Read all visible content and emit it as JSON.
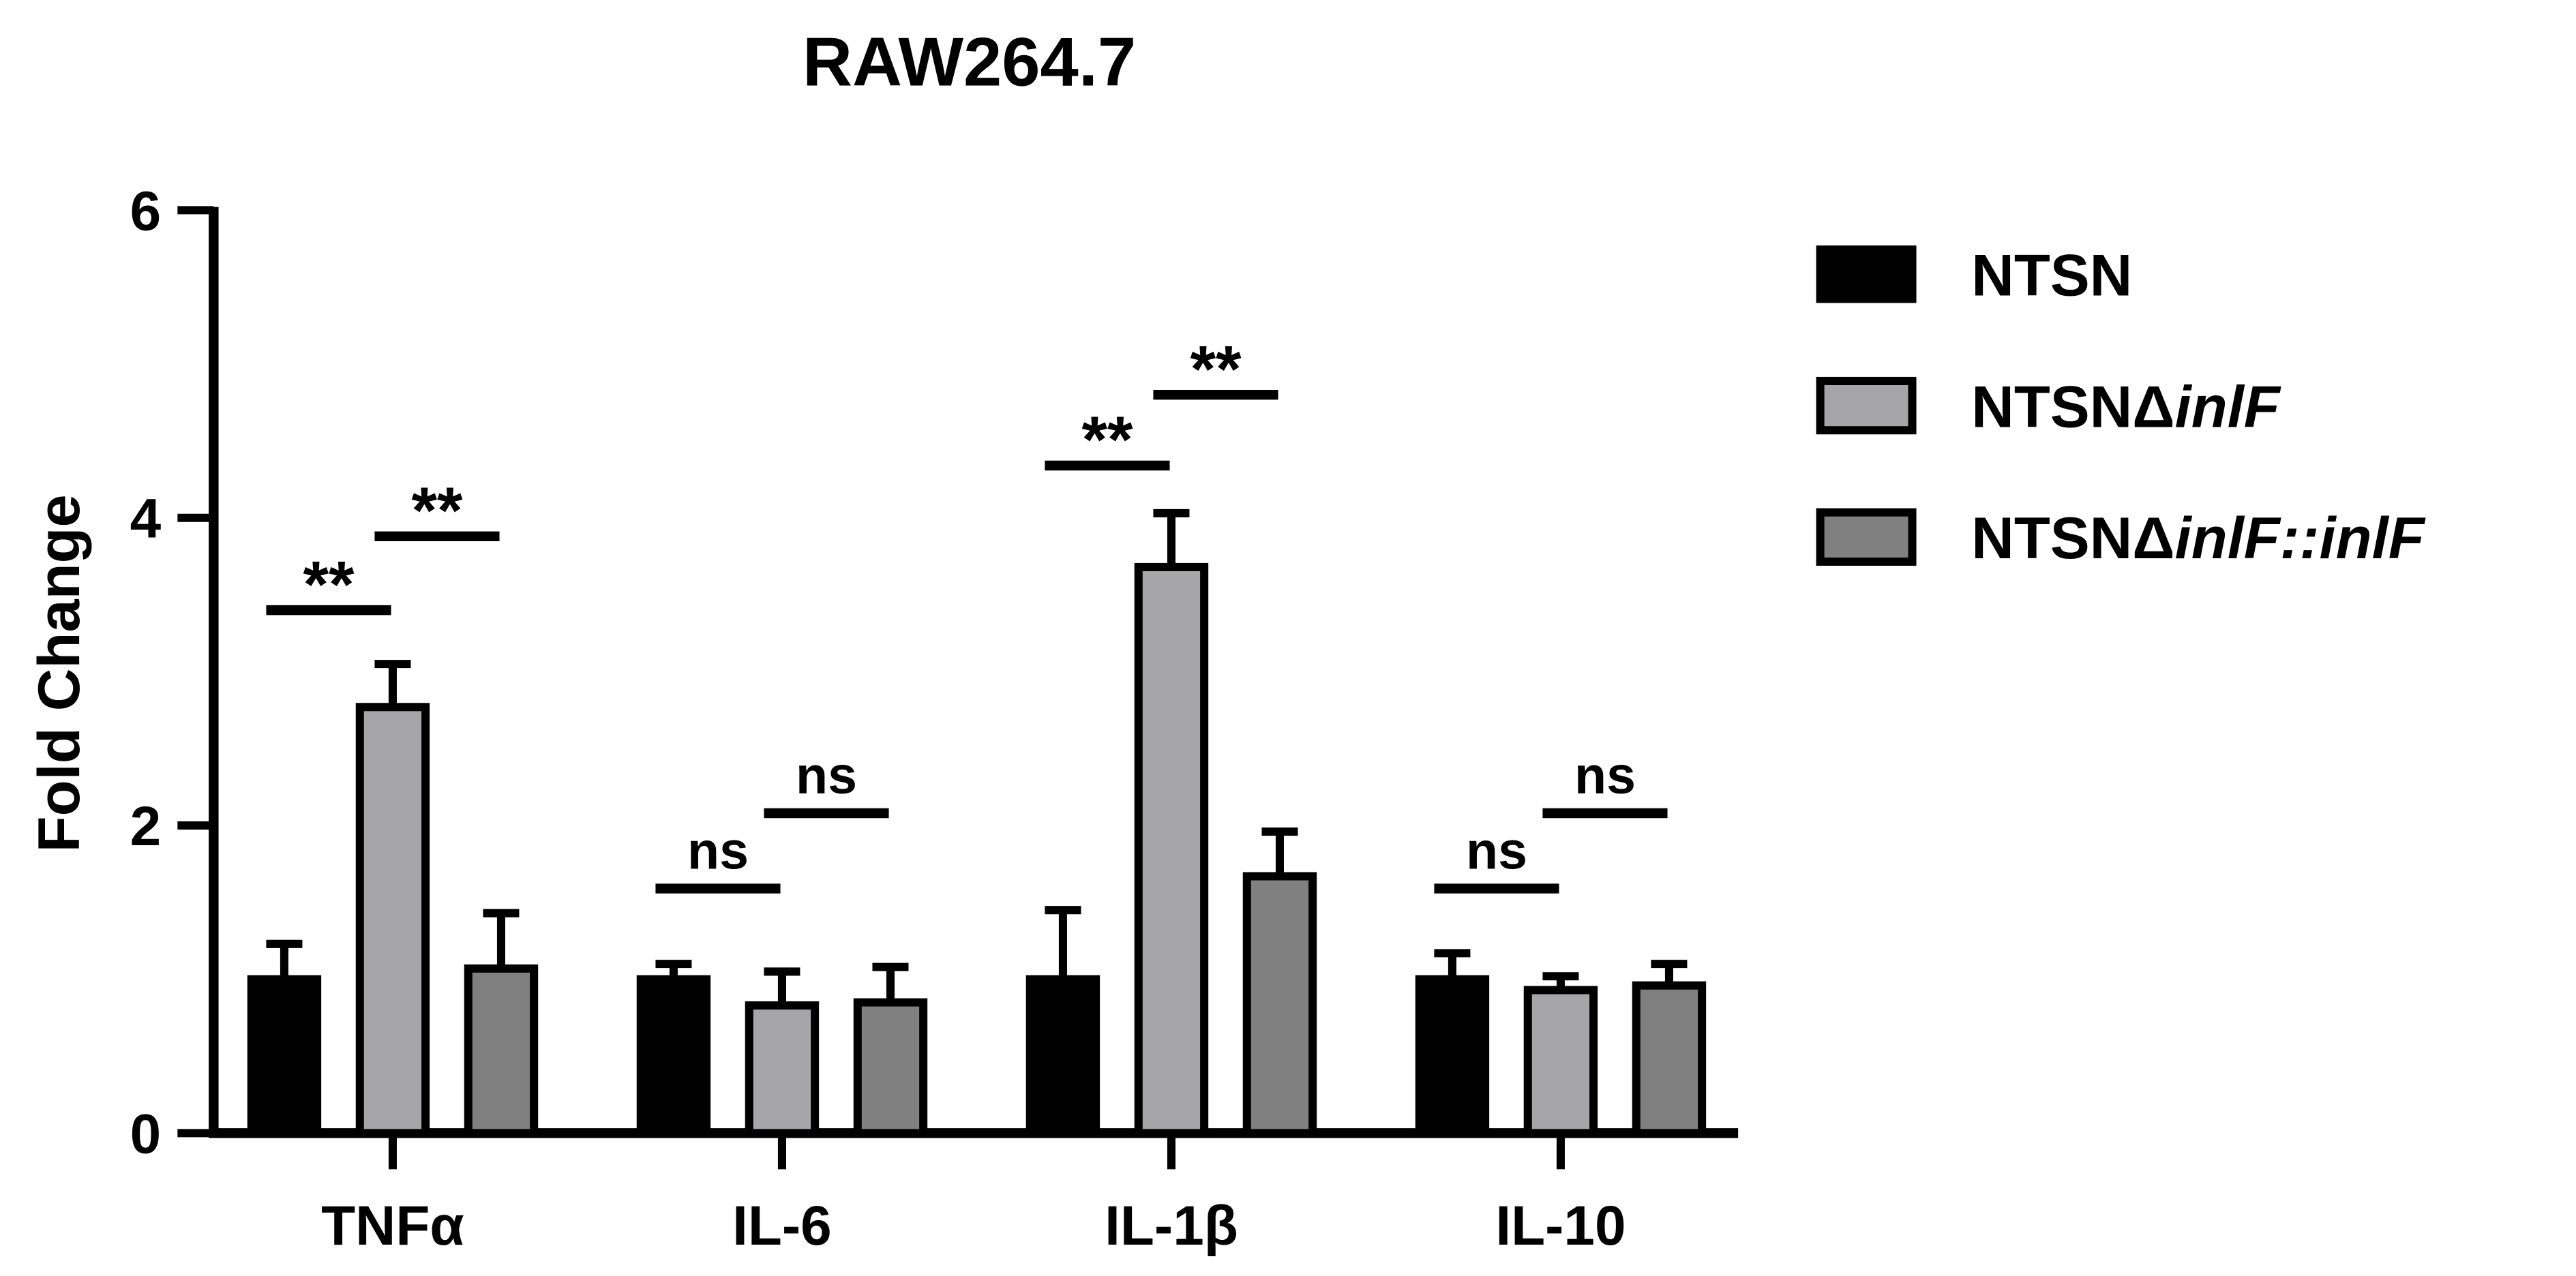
{
  "chart_data": {
    "type": "bar",
    "title": "RAW264.7",
    "y_label": "Fold Change",
    "categories": [
      "TNFα",
      "IL-6",
      "IL-1β",
      "IL-10"
    ],
    "series": [
      {
        "name": "NTSN",
        "color": "#000000",
        "values": [
          1.0,
          1.0,
          1.0,
          1.0
        ],
        "errors": [
          0.23,
          0.1,
          0.45,
          0.17
        ]
      },
      {
        "name": "NTSNΔinlF",
        "color": "#a6a6a8",
        "values": [
          2.77,
          0.83,
          3.68,
          0.93
        ],
        "errors": [
          0.28,
          0.22,
          0.35,
          0.09
        ]
      },
      {
        "name": "NTSNΔinlF::inlF",
        "color": "#808080",
        "values": [
          1.07,
          0.85,
          1.67,
          0.96
        ],
        "errors": [
          0.36,
          0.23,
          0.29,
          0.14
        ]
      }
    ],
    "annotations": [
      {
        "text": "**",
        "category": 0,
        "from": 0,
        "to": 1,
        "y": 3.4
      },
      {
        "text": "**",
        "category": 0,
        "from": 1,
        "to": 2,
        "y": 3.88
      },
      {
        "text": "ns",
        "category": 1,
        "from": 0,
        "to": 1,
        "y": 1.59
      },
      {
        "text": "ns",
        "category": 1,
        "from": 1,
        "to": 2,
        "y": 2.08
      },
      {
        "text": "**",
        "category": 2,
        "from": 0,
        "to": 1,
        "y": 4.34
      },
      {
        "text": "**",
        "category": 2,
        "from": 1,
        "to": 2,
        "y": 4.8
      },
      {
        "text": "ns",
        "category": 3,
        "from": 0,
        "to": 1,
        "y": 1.59
      },
      {
        "text": "ns",
        "category": 3,
        "from": 1,
        "to": 2,
        "y": 2.08
      }
    ],
    "ylim": [
      0,
      6
    ],
    "yticks": [
      0,
      2,
      4,
      6
    ],
    "legend": "right"
  }
}
